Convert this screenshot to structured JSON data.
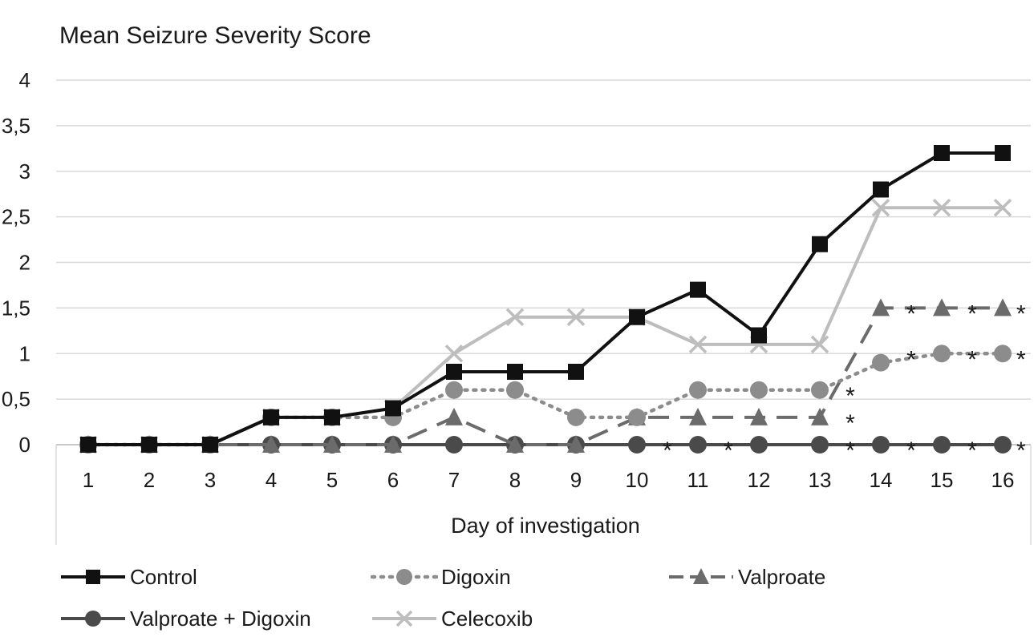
{
  "chart_data": {
    "type": "line",
    "title": "Mean Seizure Severity Score",
    "xlabel": "Day of investigation",
    "ylabel": "",
    "x": [
      1,
      2,
      3,
      4,
      5,
      6,
      7,
      8,
      9,
      10,
      11,
      12,
      13,
      14,
      15,
      16
    ],
    "ylim": [
      0,
      4
    ],
    "yticks": [
      "0",
      "0,5",
      "1",
      "1,5",
      "2",
      "2,5",
      "3",
      "3,5",
      "4"
    ],
    "ytick_values": [
      0,
      0.5,
      1,
      1.5,
      2,
      2.5,
      3,
      3.5,
      4
    ],
    "grid": true,
    "legend_position": "bottom",
    "series": [
      {
        "name": "Control",
        "color": "#111111",
        "dash": "solid",
        "marker": "square",
        "values": [
          0,
          0,
          0,
          0.3,
          0.3,
          0.4,
          0.8,
          0.8,
          0.8,
          1.4,
          1.7,
          1.2,
          2.2,
          2.8,
          3.2,
          3.2
        ]
      },
      {
        "name": "Digoxin",
        "color": "#8c8c8c",
        "dash": "dotted",
        "marker": "circle",
        "values": [
          0,
          0,
          0,
          0.3,
          0.3,
          0.3,
          0.6,
          0.6,
          0.3,
          0.3,
          0.6,
          0.6,
          0.6,
          0.9,
          1.0,
          1.0
        ]
      },
      {
        "name": "Valproate",
        "color": "#6b6b6b",
        "dash": "dashed",
        "marker": "triangle",
        "values": [
          0,
          0,
          0,
          0,
          0,
          0,
          0.3,
          0,
          0,
          0.3,
          0.3,
          0.3,
          0.3,
          1.5,
          1.5,
          1.5
        ]
      },
      {
        "name": "Valproate + Digoxin",
        "color": "#4a4a4a",
        "dash": "solid",
        "marker": "circle",
        "values": [
          0,
          0,
          0,
          0,
          0,
          0,
          0,
          0,
          0,
          0,
          0,
          0,
          0,
          0,
          0,
          0
        ]
      },
      {
        "name": "Celecoxib",
        "color": "#bdbdbd",
        "dash": "solid",
        "marker": "x",
        "values": [
          0,
          0,
          0,
          0.3,
          0.3,
          0.4,
          1.0,
          1.4,
          1.4,
          1.4,
          1.1,
          1.1,
          1.1,
          2.6,
          2.6,
          2.6
        ]
      }
    ],
    "annotations": [
      {
        "text": "*",
        "x": 10.5,
        "y": 0
      },
      {
        "text": "*",
        "x": 11.5,
        "y": 0
      },
      {
        "text": "*",
        "x": 13.5,
        "y": 0
      },
      {
        "text": "*",
        "x": 14.5,
        "y": 0
      },
      {
        "text": "*",
        "x": 15.5,
        "y": 0
      },
      {
        "text": "*",
        "x": 16.3,
        "y": 0
      },
      {
        "text": "*",
        "x": 13.5,
        "y": 0.3
      },
      {
        "text": "*",
        "x": 13.5,
        "y": 0.6
      },
      {
        "text": "*",
        "x": 14.5,
        "y": 1.0
      },
      {
        "text": "*",
        "x": 15.5,
        "y": 1.0
      },
      {
        "text": "*",
        "x": 16.3,
        "y": 1.0
      },
      {
        "text": "*",
        "x": 14.5,
        "y": 1.5
      },
      {
        "text": "*",
        "x": 15.5,
        "y": 1.5
      },
      {
        "text": "*",
        "x": 16.3,
        "y": 1.5
      }
    ]
  }
}
